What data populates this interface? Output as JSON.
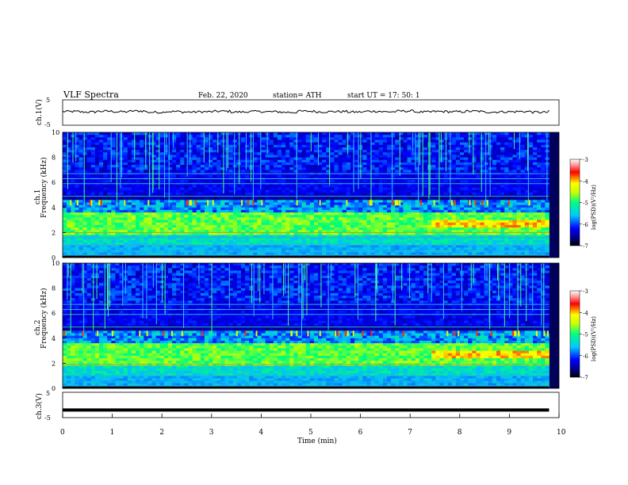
{
  "header": {
    "title": "VLF Spectra",
    "date": "Feb. 22, 2020",
    "station": "station= ATH",
    "start": "start UT = 17: 50: 1"
  },
  "chart_data": [
    {
      "type": "line",
      "ylabel": "ch.1(V)",
      "yticks": [
        "5",
        "-5"
      ],
      "ylim": [
        -5,
        5
      ],
      "series": [
        {
          "values": [
            0.4,
            0.2,
            0.5,
            0.3,
            0.6,
            0.1,
            0.4,
            0.2,
            0.3,
            0.5,
            0.2,
            0.4,
            0.3,
            0.1,
            0.5,
            0.3,
            0.4,
            0.2,
            0.5,
            0.3,
            0.6,
            0.2,
            0.4,
            0.3,
            0.5,
            0.2,
            0.3,
            0.4,
            0.1,
            0.5
          ]
        }
      ],
      "xlim": [
        0,
        10
      ]
    },
    {
      "type": "heatmap",
      "ylabel": "ch.1",
      "ylabel2": "Frequency (kHz)",
      "yticks": [
        "0",
        "2",
        "4",
        "6",
        "8",
        "10"
      ],
      "ylim": [
        0,
        10
      ],
      "xlim": [
        0,
        10
      ],
      "colorbar": {
        "label": "log(PSD)(V²/Hz)",
        "ticks": [
          "-3",
          "-4",
          "-5",
          "-6",
          "-7"
        ],
        "range": [
          -7,
          -3
        ]
      },
      "noise_band_khz": [
        1.8,
        3.6
      ],
      "line_khz": [
        0.2,
        0.5,
        1.0,
        1.6,
        2.0,
        4.9,
        5.9,
        6.3,
        6.7
      ]
    },
    {
      "type": "heatmap",
      "ylabel": "ch.2",
      "ylabel2": "Frequency (kHz)",
      "yticks": [
        "0",
        "2",
        "4",
        "6",
        "8",
        "10"
      ],
      "ylim": [
        0,
        10
      ],
      "xlim": [
        0,
        10
      ],
      "colorbar": {
        "label": "log(PSD)(V²/Hz)",
        "ticks": [
          "-3",
          "-4",
          "-5",
          "-6",
          "-7"
        ],
        "range": [
          -7,
          -3
        ]
      },
      "noise_band_khz": [
        1.8,
        3.6
      ],
      "line_khz": [
        0.2,
        0.5,
        1.0,
        1.9,
        4.9,
        5.9,
        6.3,
        6.7
      ]
    },
    {
      "type": "line",
      "ylabel": "ch.3(V)",
      "yticks": [
        "5",
        "-5"
      ],
      "ylim": [
        -5,
        5
      ],
      "series": [
        {
          "values": [
            -2.0,
            -2.0
          ]
        }
      ],
      "xlim": [
        0,
        10
      ],
      "xlabel": "Time (min)",
      "xticks": [
        "0",
        "1",
        "2",
        "3",
        "4",
        "5",
        "6",
        "7",
        "8",
        "9",
        "10"
      ]
    }
  ]
}
